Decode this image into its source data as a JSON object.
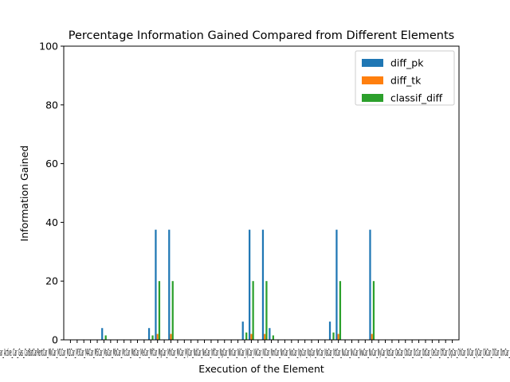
{
  "chart_data": {
    "type": "bar",
    "title": "Percentage Information Gained Compared from Different Elements",
    "xlabel": "Execution of the Element",
    "ylabel": "Information Gained",
    "ylim": [
      0,
      100
    ],
    "yticks": [
      0,
      20,
      40,
      60,
      80,
      100
    ],
    "grid": false,
    "legend_position": "top-right",
    "categories": [
      "Car_Acti",
      "ve_Car",
      "Car_Gas",
      "Car_Bat",
      "Car_Rent",
      "Car_Mk",
      "Car_M1",
      "Car_M2",
      "Car_M3",
      "Car_M4",
      "Car_M5",
      "Car_Ma",
      "Car_Mb",
      "Car_Mc",
      "Car_Md",
      "Car_Me",
      "Car_Mf",
      "Car_Mg",
      "Car_Mh",
      "Car_Mi",
      "Car_Mj",
      "Car_Nd",
      "Car_Ne",
      "Car_Nf",
      "Car_Ng",
      "Car_Nh",
      "Car_Ni",
      "Car_Nj",
      "Car_Nk",
      "Car_Nl",
      "Car_Nm",
      "Car_Nn",
      "Car_No",
      "Car_Np",
      "Car_Nq",
      "Car_Nr",
      "Car_Ns",
      "Car_Nt",
      "Car_Nu",
      "Car_Nv",
      "Car_Nw",
      "Car_Nx",
      "Car_Ny",
      "Car_Nz",
      "Car_Oa",
      "Car_Ob",
      "Car_Oc",
      "Car_Od",
      "Car_Oe",
      "Car_Of",
      "Car_Og",
      "Car_Oh",
      "Car_Oi",
      "Car_Oj",
      "Car_Ok",
      "Car_Ol",
      "Car_Om",
      "Car_Owned_Car"
    ],
    "series": [
      {
        "name": "diff_pk",
        "color": "#1f77b4",
        "values": [
          0,
          0,
          0,
          0,
          0,
          4,
          0,
          0,
          0,
          0,
          0,
          0,
          4,
          37.5,
          0,
          37.5,
          0,
          0,
          0,
          0,
          0,
          0,
          0,
          0,
          0,
          0,
          6.2,
          37.5,
          0,
          37.5,
          4,
          0,
          0,
          0,
          0,
          0,
          0,
          0,
          0,
          6.2,
          37.5,
          0,
          0,
          0,
          0,
          37.5,
          0,
          0,
          0,
          0,
          0,
          0,
          0,
          0,
          0,
          0,
          0,
          0
        ]
      },
      {
        "name": "diff_tk",
        "color": "#ff7f0e",
        "values": [
          0,
          0,
          0,
          0,
          0,
          0,
          0,
          0,
          0,
          0,
          0,
          0,
          0,
          2,
          0,
          2,
          0,
          0,
          0,
          0,
          0,
          0,
          0,
          0,
          0,
          0,
          0,
          2,
          0,
          2,
          0,
          0,
          0,
          0,
          0,
          0,
          0,
          0,
          0,
          0,
          2,
          0,
          0,
          0,
          0,
          2,
          0,
          0,
          0,
          0,
          0,
          0,
          0,
          0,
          0,
          0,
          0,
          0
        ]
      },
      {
        "name": "classif_diff",
        "color": "#2ca02c",
        "values": [
          0,
          0,
          0,
          0,
          0,
          1.5,
          0,
          0,
          0,
          0,
          0,
          0,
          1.5,
          20,
          0,
          20,
          0,
          0,
          0,
          0,
          0,
          0,
          0,
          0,
          0,
          0,
          2.5,
          20,
          0,
          20,
          1.5,
          0,
          0,
          0,
          0,
          0,
          0,
          0,
          0,
          2.5,
          20,
          0,
          0,
          0,
          0,
          20,
          0,
          0,
          0,
          0,
          0,
          0,
          0,
          0,
          0,
          0,
          0,
          0
        ]
      }
    ],
    "visible_tick_text": "Car_Active_Car_Gas_CarBatCarRentCar_MkCar_M1Car_M2Car_M3Car_M4Car_M5Car_MaCar_MbCar_McCar_MdCar_MeCar_MfCar_MgCar_MhCar_MiCar_MjCar_NdCar_NeCar_NfCar_NgCar_NhCar_NiCar_NjCar_NkCar_NlCar_NmCar_NnCar_NoCar_NpCar_NqCar_NrCar_NsCar_NtCar_NuCar_NvCar_NwCar_NxCar_NyCar_NzCar_OaCar_ObCar_OcCar_OdCar_OeCar_OfCar_OgCar_OhCar_OiCar_OjCar_OkCar_OlCar_OmCar_Owned_Car"
  }
}
